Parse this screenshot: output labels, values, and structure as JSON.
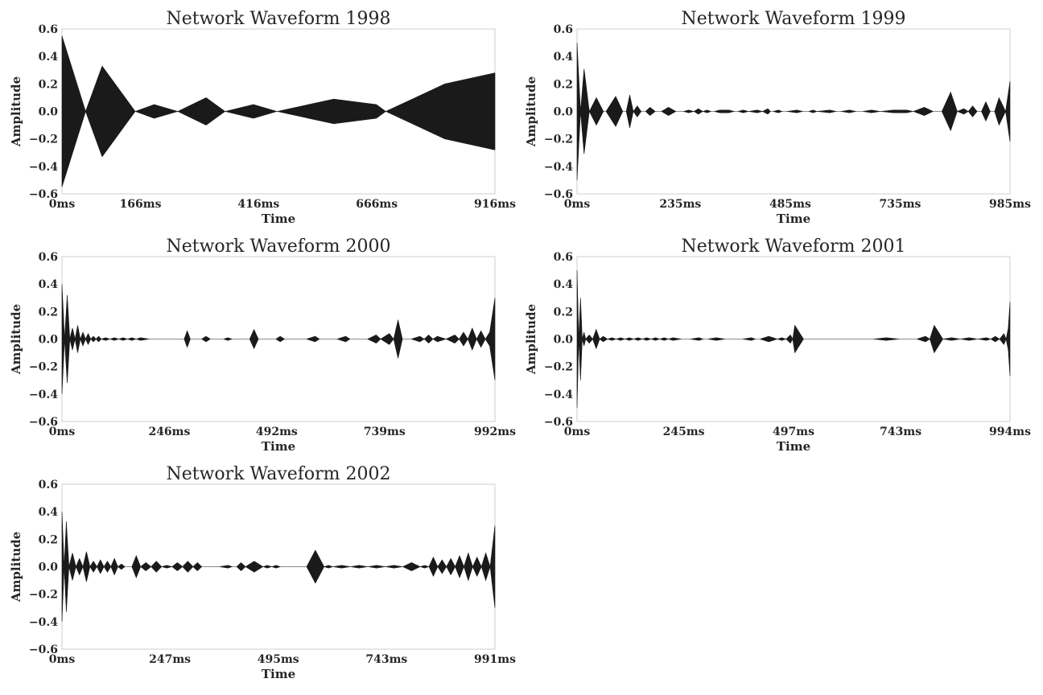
{
  "colors": {
    "waveform": "#1a1a1a",
    "frame": "#cfcfcf",
    "text": "#262626"
  },
  "chart_data": [
    {
      "type": "area",
      "title": "Network Waveform 1998",
      "xlabel": "Time",
      "ylabel": "Amplitude",
      "xlim": [
        0,
        916
      ],
      "ylim": [
        -0.6,
        0.6
      ],
      "xticks": [
        0,
        166,
        416,
        666,
        916
      ],
      "xtick_labels": [
        "0ms",
        "166ms",
        "416ms",
        "666ms",
        "916ms"
      ],
      "yticks": [
        -0.6,
        -0.4,
        -0.2,
        0.0,
        0.2,
        0.4,
        0.6
      ],
      "ytick_labels": [
        "−0.6",
        "−0.4",
        "−0.2",
        "0.0",
        "0.2",
        "0.4",
        "0.6"
      ],
      "grid": false,
      "envelope": {
        "t": [
          0,
          50,
          85,
          155,
          195,
          245,
          305,
          345,
          405,
          455,
          575,
          665,
          685,
          810,
          916
        ],
        "amp": [
          0.55,
          0.0,
          0.33,
          0.0,
          0.05,
          0.0,
          0.1,
          0.0,
          0.05,
          0.0,
          0.09,
          0.05,
          0.0,
          0.2,
          0.28
        ]
      }
    },
    {
      "type": "area",
      "title": "Network Waveform 1999",
      "xlabel": "Time",
      "ylabel": "Amplitude",
      "xlim": [
        0,
        985
      ],
      "ylim": [
        -0.6,
        0.6
      ],
      "xticks": [
        0,
        235,
        485,
        735,
        985
      ],
      "xtick_labels": [
        "0ms",
        "235ms",
        "485ms",
        "735ms",
        "985ms"
      ],
      "yticks": [
        -0.6,
        -0.4,
        -0.2,
        0.0,
        0.2,
        0.4,
        0.6
      ],
      "ytick_labels": [
        "−0.6",
        "−0.4",
        "−0.2",
        "0.0",
        "0.2",
        "0.4",
        "0.6"
      ],
      "grid": false,
      "envelope": {
        "t": [
          0,
          8,
          16,
          28,
          44,
          60,
          66,
          88,
          104,
          112,
          120,
          128,
          137,
          146,
          156,
          166,
          178,
          192,
          208,
          225,
          242,
          254,
          266,
          276,
          286,
          296,
          305,
          312,
          325,
          345,
          358,
          366,
          378,
          390,
          410,
          422,
          434,
          440,
          446,
          458,
          467,
          477,
          500,
          514,
          527,
          537,
          546,
          575,
          590,
          600,
          620,
          635,
          650,
          670,
          690,
          720,
          750,
          765,
          790,
          810,
          830,
          850,
          865,
          880,
          890,
          900,
          910,
          920,
          930,
          940,
          950,
          960,
          975,
          985
        ],
        "amp": [
          0.5,
          0.0,
          0.31,
          0.0,
          0.1,
          0.0,
          0.0,
          0.11,
          0.0,
          0.0,
          0.12,
          0.0,
          0.04,
          0.0,
          0.0,
          0.03,
          0.0,
          0.0,
          0.03,
          0.0,
          0.0,
          0.01,
          0.0,
          0.02,
          0.0,
          0.01,
          0.0,
          0.0,
          0.01,
          0.01,
          0.0,
          0.0,
          0.01,
          0.0,
          0.01,
          0.0,
          0.02,
          0.0,
          0.0,
          0.01,
          0.0,
          0.0,
          0.01,
          0.0,
          0.0,
          0.01,
          0.0,
          0.01,
          0.0,
          0.0,
          0.01,
          0.0,
          0.0,
          0.01,
          0.0,
          0.01,
          0.01,
          0.0,
          0.03,
          0.0,
          0.0,
          0.14,
          0.0,
          0.02,
          0.0,
          0.04,
          0.0,
          0.0,
          0.07,
          0.0,
          0.0,
          0.1,
          0.0,
          0.22
        ]
      }
    },
    {
      "type": "area",
      "title": "Network Waveform 2000",
      "xlabel": "Time",
      "ylabel": "Amplitude",
      "xlim": [
        0,
        992
      ],
      "ylim": [
        -0.6,
        0.6
      ],
      "xticks": [
        0,
        246,
        492,
        739,
        992
      ],
      "xtick_labels": [
        "0ms",
        "246ms",
        "492ms",
        "739ms",
        "992ms"
      ],
      "yticks": [
        -0.6,
        -0.4,
        -0.2,
        0.0,
        0.2,
        0.4,
        0.6
      ],
      "ytick_labels": [
        "−0.6",
        "−0.4",
        "−0.2",
        "0.0",
        "0.2",
        "0.4",
        "0.6"
      ],
      "grid": false,
      "envelope": {
        "t": [
          0,
          6,
          12,
          18,
          24,
          30,
          36,
          42,
          48,
          54,
          60,
          66,
          72,
          78,
          84,
          90,
          100,
          110,
          120,
          130,
          140,
          150,
          160,
          170,
          180,
          200,
          220,
          240,
          260,
          280,
          287,
          294,
          320,
          330,
          340,
          370,
          380,
          390,
          430,
          440,
          450,
          490,
          500,
          510,
          560,
          580,
          590,
          630,
          650,
          660,
          700,
          720,
          730,
          750,
          760,
          770,
          780,
          800,
          820,
          830,
          840,
          850,
          860,
          880,
          900,
          910,
          920,
          930,
          940,
          950,
          960,
          970,
          980,
          992
        ],
        "amp": [
          0.4,
          0.0,
          0.32,
          0.0,
          0.08,
          0.0,
          0.1,
          0.0,
          0.05,
          0.0,
          0.04,
          0.0,
          0.02,
          0.0,
          0.02,
          0.0,
          0.01,
          0.0,
          0.01,
          0.0,
          0.01,
          0.0,
          0.01,
          0.0,
          0.01,
          0.0,
          0.0,
          0.0,
          0.0,
          0.0,
          0.06,
          0.0,
          0.0,
          0.02,
          0.0,
          0.0,
          0.01,
          0.0,
          0.0,
          0.07,
          0.0,
          0.0,
          0.02,
          0.0,
          0.0,
          0.02,
          0.0,
          0.0,
          0.02,
          0.0,
          0.0,
          0.03,
          0.0,
          0.04,
          0.0,
          0.14,
          0.0,
          0.0,
          0.02,
          0.0,
          0.03,
          0.0,
          0.02,
          0.0,
          0.03,
          0.0,
          0.05,
          0.0,
          0.08,
          0.0,
          0.06,
          0.0,
          0.05,
          0.3
        ]
      }
    },
    {
      "type": "area",
      "title": "Network Waveform 2001",
      "xlabel": "Time",
      "ylabel": "Amplitude",
      "xlim": [
        0,
        994
      ],
      "ylim": [
        -0.6,
        0.6
      ],
      "xticks": [
        0,
        245,
        497,
        743,
        994
      ],
      "xtick_labels": [
        "0ms",
        "245ms",
        "497ms",
        "743ms",
        "994ms"
      ],
      "yticks": [
        -0.6,
        -0.4,
        -0.2,
        0.0,
        0.2,
        0.4,
        0.6
      ],
      "ytick_labels": [
        "−0.6",
        "−0.4",
        "−0.2",
        "0.0",
        "0.2",
        "0.4",
        "0.6"
      ],
      "grid": false,
      "envelope": {
        "t": [
          0,
          4,
          8,
          12,
          16,
          20,
          28,
          36,
          44,
          52,
          60,
          70,
          80,
          90,
          100,
          110,
          120,
          130,
          140,
          150,
          160,
          170,
          180,
          190,
          200,
          210,
          220,
          240,
          260,
          280,
          290,
          300,
          320,
          340,
          360,
          380,
          400,
          410,
          420,
          440,
          460,
          470,
          480,
          490,
          495,
          500,
          520,
          560,
          600,
          640,
          680,
          710,
          740,
          760,
          780,
          800,
          810,
          820,
          840,
          860,
          880,
          900,
          920,
          940,
          950,
          960,
          970,
          980,
          985,
          990,
          994
        ],
        "amp": [
          0.5,
          0.0,
          0.3,
          0.0,
          0.05,
          0.0,
          0.03,
          0.0,
          0.07,
          0.0,
          0.02,
          0.0,
          0.01,
          0.0,
          0.01,
          0.0,
          0.01,
          0.0,
          0.01,
          0.0,
          0.01,
          0.0,
          0.01,
          0.0,
          0.01,
          0.0,
          0.01,
          0.0,
          0.0,
          0.01,
          0.0,
          0.0,
          0.01,
          0.0,
          0.0,
          0.0,
          0.01,
          0.0,
          0.0,
          0.02,
          0.0,
          0.01,
          0.0,
          0.03,
          0.0,
          0.1,
          0.0,
          0.0,
          0.0,
          0.0,
          0.0,
          0.01,
          0.0,
          0.0,
          0.0,
          0.02,
          0.0,
          0.1,
          0.0,
          0.01,
          0.0,
          0.01,
          0.0,
          0.01,
          0.0,
          0.02,
          0.0,
          0.04,
          0.0,
          0.08,
          0.27
        ]
      }
    },
    {
      "type": "area",
      "title": "Network Waveform 2002",
      "xlabel": "Time",
      "ylabel": "Amplitude",
      "xlim": [
        0,
        991
      ],
      "ylim": [
        -0.6,
        0.6
      ],
      "xticks": [
        0,
        247,
        495,
        743,
        991
      ],
      "xtick_labels": [
        "0ms",
        "247ms",
        "495ms",
        "743ms",
        "991ms"
      ],
      "yticks": [
        -0.6,
        -0.4,
        -0.2,
        0.0,
        0.2,
        0.4,
        0.6
      ],
      "ytick_labels": [
        "−0.6",
        "−0.4",
        "−0.2",
        "0.0",
        "0.2",
        "0.4",
        "0.6"
      ],
      "grid": false,
      "envelope": {
        "t": [
          0,
          5,
          10,
          16,
          24,
          32,
          40,
          48,
          56,
          64,
          72,
          80,
          88,
          96,
          104,
          112,
          120,
          128,
          136,
          144,
          160,
          170,
          180,
          192,
          204,
          216,
          228,
          240,
          252,
          264,
          276,
          288,
          300,
          310,
          320,
          340,
          360,
          380,
          390,
          400,
          410,
          420,
          440,
          460,
          470,
          480,
          490,
          500,
          520,
          540,
          560,
          580,
          600,
          610,
          620,
          640,
          660,
          680,
          700,
          720,
          740,
          760,
          780,
          800,
          820,
          830,
          840,
          850,
          860,
          870,
          880,
          890,
          900,
          910,
          920,
          930,
          940,
          950,
          960,
          970,
          980,
          991
        ],
        "amp": [
          0.4,
          0.0,
          0.33,
          0.0,
          0.1,
          0.0,
          0.06,
          0.0,
          0.11,
          0.0,
          0.04,
          0.0,
          0.05,
          0.0,
          0.04,
          0.0,
          0.06,
          0.0,
          0.02,
          0.0,
          0.0,
          0.08,
          0.0,
          0.03,
          0.0,
          0.04,
          0.0,
          0.01,
          0.0,
          0.03,
          0.0,
          0.04,
          0.0,
          0.03,
          0.0,
          0.0,
          0.0,
          0.01,
          0.0,
          0.0,
          0.03,
          0.0,
          0.04,
          0.0,
          0.01,
          0.0,
          0.01,
          0.0,
          0.0,
          0.0,
          0.0,
          0.12,
          0.0,
          0.01,
          0.0,
          0.01,
          0.0,
          0.01,
          0.0,
          0.01,
          0.0,
          0.01,
          0.0,
          0.03,
          0.0,
          0.01,
          0.0,
          0.07,
          0.0,
          0.05,
          0.0,
          0.06,
          0.0,
          0.08,
          0.0,
          0.1,
          0.0,
          0.07,
          0.0,
          0.1,
          0.0,
          0.3
        ]
      }
    }
  ]
}
